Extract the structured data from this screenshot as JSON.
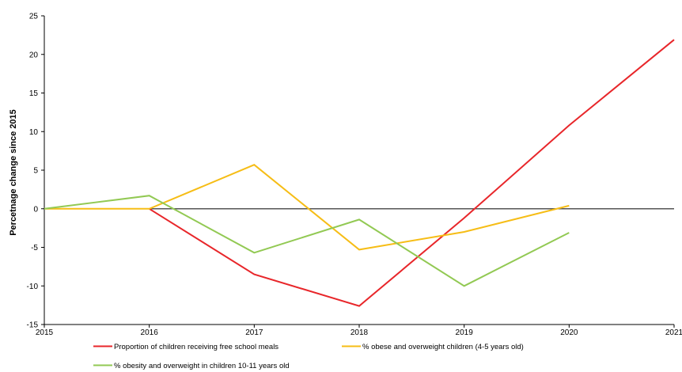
{
  "chart_data": {
    "type": "line",
    "title": "",
    "xlabel": "",
    "ylabel": "Percetnage change since 2015",
    "x": [
      2015,
      2016,
      2017,
      2018,
      2019,
      2020,
      2021
    ],
    "xlim": [
      2015,
      2021
    ],
    "ylim": [
      -15,
      25
    ],
    "yticks": [
      -15,
      -10,
      -5,
      0,
      5,
      10,
      15,
      20,
      25
    ],
    "grid": false,
    "zero_line": true,
    "legend_position": "bottom",
    "series": [
      {
        "name": "Proportion of children receiving free school meals",
        "color": "#e8262a",
        "x": [
          2016,
          2017,
          2018,
          2019,
          2020,
          2021
        ],
        "values": [
          0,
          -8.5,
          -12.6,
          -1.2,
          10.8,
          21.9
        ]
      },
      {
        "name": "% obese and overweight children (4-5 years old)",
        "color": "#f6bd16",
        "x": [
          2015,
          2016,
          2017,
          2018,
          2019,
          2020
        ],
        "values": [
          0,
          0,
          5.7,
          -5.3,
          -3.0,
          0.4
        ]
      },
      {
        "name": "% obesity and overweight in children 10-11 years old",
        "color": "#92c953",
        "x": [
          2015,
          2016,
          2017,
          2018,
          2019,
          2020
        ],
        "values": [
          0,
          1.7,
          -5.7,
          -1.4,
          -10.0,
          -3.1
        ]
      }
    ]
  }
}
